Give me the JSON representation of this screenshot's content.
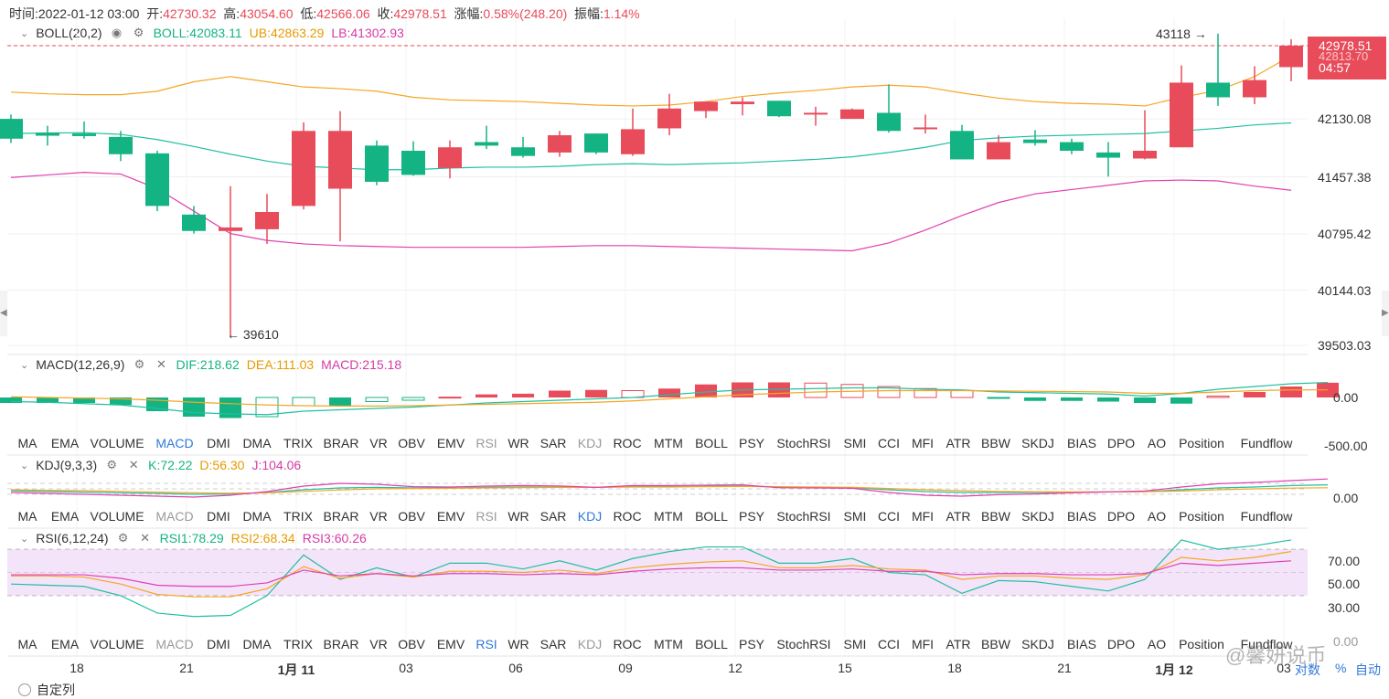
{
  "info": {
    "time_label": "时间:",
    "time": "2022-01-12 03:00",
    "open_label": "开:",
    "open": "42730.32",
    "high_label": "高:",
    "high": "43054.60",
    "low_label": "低:",
    "low": "42566.06",
    "close_label": "收:",
    "close": "42978.51",
    "change_label": "涨幅:",
    "change": "0.58%(248.20)",
    "amp_label": "振幅:",
    "amp": "1.14%"
  },
  "boll": {
    "name": "BOLL(20,2)",
    "mid_label": "BOLL:42083.11",
    "ub_label": "UB:42863.29",
    "lb_label": "LB:41302.93",
    "mid_color": "#21c0a0",
    "ub_color": "#f5a623",
    "lb_color": "#e040b0"
  },
  "macd": {
    "name": "MACD(12,26,9)",
    "dif_label": "DIF:218.62",
    "dea_label": "DEA:111.03",
    "macd_label": "MACD:215.18"
  },
  "kdj": {
    "name": "KDJ(9,3,3)",
    "k_label": "K:72.22",
    "d_label": "D:56.30",
    "j_label": "J:104.06"
  },
  "rsi": {
    "name": "RSI(6,12,24)",
    "r1_label": "RSI1:78.29",
    "r2_label": "RSI2:68.34",
    "r3_label": "RSI3:60.26"
  },
  "price_axis": [
    "42130.08",
    "41457.38",
    "40795.42",
    "40144.03",
    "39503.03"
  ],
  "current_price": "42978.51",
  "ghost_price": "42813.70",
  "countdown": "04:57",
  "high_marker": "43118",
  "low_marker": "39610",
  "macd_axis": [
    "0.00",
    "-500.00"
  ],
  "kdj_axis": [
    "0.00"
  ],
  "rsi_axis": [
    "70.00",
    "50.00",
    "30.00",
    "0.00"
  ],
  "indicator_tabs": [
    "MA",
    "EMA",
    "VOLUME",
    "MACD",
    "DMI",
    "DMA",
    "TRIX",
    "BRAR",
    "VR",
    "OBV",
    "EMV",
    "RSI",
    "WR",
    "SAR",
    "KDJ",
    "ROC",
    "MTM",
    "BOLL",
    "PSY",
    "StochRSI",
    "SMI",
    "CCI",
    "MFI",
    "ATR",
    "BBW",
    "SKDJ",
    "BIAS",
    "DPO",
    "AO",
    "Position",
    "Fundflow"
  ],
  "x_axis": [
    {
      "label": "18",
      "bold": false
    },
    {
      "label": "21",
      "bold": false
    },
    {
      "label": "1月 11",
      "bold": true
    },
    {
      "label": "03",
      "bold": false
    },
    {
      "label": "06",
      "bold": false
    },
    {
      "label": "09",
      "bold": false
    },
    {
      "label": "12",
      "bold": false
    },
    {
      "label": "15",
      "bold": false
    },
    {
      "label": "18",
      "bold": false
    },
    {
      "label": "21",
      "bold": false
    },
    {
      "label": "1月 12",
      "bold": true
    },
    {
      "label": "03",
      "bold": false
    }
  ],
  "bottom_controls": {
    "log": "对数",
    "percent": "%",
    "auto": "自动"
  },
  "watermark": "@馨妍说币",
  "bottom_panel_title": "自定列",
  "colors": {
    "up": "#e84b5a",
    "down": "#14b383",
    "accent": "#2f79d8"
  },
  "chart_data": {
    "type": "candlestick",
    "series": [
      {
        "name": "candles",
        "values": [
          {
            "o": 42130,
            "c": 41900,
            "h": 42180,
            "l": 41850
          },
          {
            "o": 41960,
            "c": 41945,
            "h": 42050,
            "l": 41820
          },
          {
            "o": 41960,
            "c": 41930,
            "h": 42100,
            "l": 41900
          },
          {
            "o": 41920,
            "c": 41720,
            "h": 41990,
            "l": 41640
          },
          {
            "o": 41730,
            "c": 41120,
            "h": 41760,
            "l": 41060
          },
          {
            "o": 41020,
            "c": 40830,
            "h": 41120,
            "l": 40800
          },
          {
            "o": 40840,
            "c": 40860,
            "h": 41350,
            "l": 39610
          },
          {
            "o": 40850,
            "c": 41050,
            "h": 41260,
            "l": 40680
          },
          {
            "o": 41120,
            "c": 41990,
            "h": 42090,
            "l": 41080
          },
          {
            "o": 41320,
            "c": 41990,
            "h": 42220,
            "l": 40710
          },
          {
            "o": 41820,
            "c": 41400,
            "h": 41880,
            "l": 41360
          },
          {
            "o": 41760,
            "c": 41480,
            "h": 41870,
            "l": 41470
          },
          {
            "o": 41560,
            "c": 41800,
            "h": 41880,
            "l": 41440
          },
          {
            "o": 41850,
            "c": 41830,
            "h": 42050,
            "l": 41780
          },
          {
            "o": 41800,
            "c": 41700,
            "h": 41920,
            "l": 41680
          },
          {
            "o": 41740,
            "c": 41940,
            "h": 41990,
            "l": 41690
          },
          {
            "o": 41960,
            "c": 41740,
            "h": 41960,
            "l": 41720
          },
          {
            "o": 41720,
            "c": 42010,
            "h": 42250,
            "l": 41700
          },
          {
            "o": 42020,
            "c": 42250,
            "h": 42420,
            "l": 41940
          },
          {
            "o": 42220,
            "c": 42330,
            "h": 42330,
            "l": 42140
          },
          {
            "o": 42300,
            "c": 42330,
            "h": 42380,
            "l": 42170
          },
          {
            "o": 42340,
            "c": 42160,
            "h": 42340,
            "l": 42150
          },
          {
            "o": 42190,
            "c": 42190,
            "h": 42270,
            "l": 42050
          },
          {
            "o": 42130,
            "c": 42240,
            "h": 42250,
            "l": 42130
          },
          {
            "o": 42200,
            "c": 41990,
            "h": 42530,
            "l": 41970
          },
          {
            "o": 42020,
            "c": 42020,
            "h": 42180,
            "l": 41960
          },
          {
            "o": 41990,
            "c": 41660,
            "h": 42060,
            "l": 41660
          },
          {
            "o": 41660,
            "c": 41860,
            "h": 41940,
            "l": 41660
          },
          {
            "o": 41880,
            "c": 41860,
            "h": 42000,
            "l": 41820
          },
          {
            "o": 41860,
            "c": 41760,
            "h": 41900,
            "l": 41720
          },
          {
            "o": 41740,
            "c": 41680,
            "h": 41860,
            "l": 41460
          },
          {
            "o": 41670,
            "c": 41760,
            "h": 42230,
            "l": 41660
          },
          {
            "o": 41800,
            "c": 42550,
            "h": 42750,
            "l": 41800
          },
          {
            "o": 42550,
            "c": 42380,
            "h": 43118,
            "l": 42280
          },
          {
            "o": 42380,
            "c": 42580,
            "h": 42740,
            "l": 42300
          },
          {
            "o": 42730,
            "c": 42978.51,
            "h": 43054.6,
            "l": 42566.06
          }
        ]
      },
      {
        "name": "BOLL",
        "values": [
          41960,
          41965,
          41970,
          41950,
          41890,
          41810,
          41720,
          41640,
          41580,
          41560,
          41540,
          41540,
          41560,
          41570,
          41570,
          41580,
          41600,
          41610,
          41600,
          41610,
          41620,
          41640,
          41660,
          41690,
          41740,
          41800,
          41880,
          41910,
          41930,
          41940,
          41950,
          41960,
          41990,
          42020,
          42060,
          42083
        ]
      },
      {
        "name": "UB",
        "values": [
          42440,
          42420,
          42410,
          42410,
          42450,
          42560,
          42620,
          42560,
          42500,
          42480,
          42450,
          42380,
          42350,
          42340,
          42330,
          42310,
          42290,
          42280,
          42290,
          42330,
          42390,
          42430,
          42460,
          42500,
          42520,
          42500,
          42430,
          42370,
          42330,
          42310,
          42300,
          42280,
          42380,
          42460,
          42620,
          42863
        ]
      },
      {
        "name": "LB",
        "values": [
          41450,
          41480,
          41510,
          41490,
          41320,
          41060,
          40800,
          40720,
          40680,
          40660,
          40650,
          40640,
          40640,
          40640,
          40640,
          40650,
          40660,
          40660,
          40650,
          40640,
          40630,
          40620,
          40610,
          40600,
          40690,
          40840,
          41010,
          41160,
          41260,
          41310,
          41360,
          41410,
          41420,
          41410,
          41350,
          41302
        ]
      }
    ],
    "macd_hist": [
      -80,
      -80,
      -80,
      -110,
      -200,
      -280,
      -300,
      -280,
      -120,
      -120,
      -60,
      -40,
      5,
      45,
      55,
      100,
      110,
      100,
      130,
      190,
      220,
      220,
      210,
      190,
      160,
      130,
      100,
      -10,
      -50,
      -50,
      -60,
      -80,
      -90,
      20,
      80,
      160,
      215
    ],
    "dif": [
      -60,
      -70,
      -90,
      -110,
      -160,
      -220,
      -240,
      -250,
      -200,
      -180,
      -160,
      -140,
      -110,
      -80,
      -60,
      -40,
      -20,
      0,
      40,
      80,
      110,
      120,
      130,
      140,
      140,
      120,
      110,
      80,
      70,
      60,
      50,
      20,
      60,
      120,
      160,
      200,
      219
    ],
    "dea": [
      10,
      0,
      -10,
      -20,
      -40,
      -70,
      -90,
      -110,
      -120,
      -125,
      -125,
      -120,
      -110,
      -100,
      -90,
      -80,
      -70,
      -50,
      -20,
      10,
      40,
      60,
      80,
      90,
      100,
      100,
      100,
      95,
      90,
      85,
      80,
      60,
      60,
      80,
      100,
      110,
      111
    ],
    "kdj_k": [
      40,
      35,
      32,
      28,
      25,
      20,
      22,
      30,
      45,
      55,
      58,
      55,
      55,
      58,
      60,
      60,
      58,
      62,
      62,
      64,
      65,
      60,
      58,
      56,
      45,
      35,
      30,
      30,
      30,
      32,
      33,
      35,
      45,
      55,
      60,
      68,
      72
    ],
    "kdj_d": [
      45,
      42,
      40,
      36,
      32,
      28,
      26,
      28,
      36,
      44,
      50,
      52,
      53,
      55,
      57,
      58,
      58,
      60,
      60,
      62,
      63,
      62,
      60,
      58,
      52,
      45,
      40,
      36,
      34,
      33,
      33,
      34,
      38,
      45,
      50,
      54,
      56
    ],
    "kdj_j": [
      30,
      25,
      20,
      15,
      10,
      5,
      15,
      35,
      65,
      80,
      75,
      62,
      60,
      65,
      68,
      66,
      58,
      68,
      68,
      70,
      72,
      56,
      55,
      53,
      30,
      15,
      10,
      18,
      22,
      28,
      33,
      38,
      60,
      78,
      85,
      95,
      104
    ],
    "rsi1": [
      40,
      39,
      38,
      30,
      15,
      12,
      13,
      30,
      65,
      44,
      54,
      46,
      58,
      58,
      53,
      60,
      52,
      62,
      68,
      72,
      72,
      58,
      58,
      62,
      50,
      48,
      32,
      43,
      42,
      38,
      34,
      44,
      78,
      70,
      73,
      78
    ],
    "rsi2": [
      47,
      47,
      46,
      40,
      31,
      29,
      29,
      36,
      55,
      45,
      49,
      46,
      51,
      51,
      50,
      52,
      49,
      54,
      57,
      59,
      60,
      54,
      54,
      56,
      53,
      52,
      44,
      47,
      47,
      45,
      44,
      48,
      63,
      60,
      63,
      68
    ],
    "rsi3": [
      48,
      48,
      48,
      45,
      39,
      38,
      38,
      41,
      52,
      47,
      49,
      47,
      49,
      49,
      48,
      49,
      48,
      51,
      53,
      54,
      54,
      52,
      52,
      53,
      51,
      51,
      48,
      49,
      49,
      48,
      48,
      49,
      58,
      56,
      58,
      60
    ]
  }
}
